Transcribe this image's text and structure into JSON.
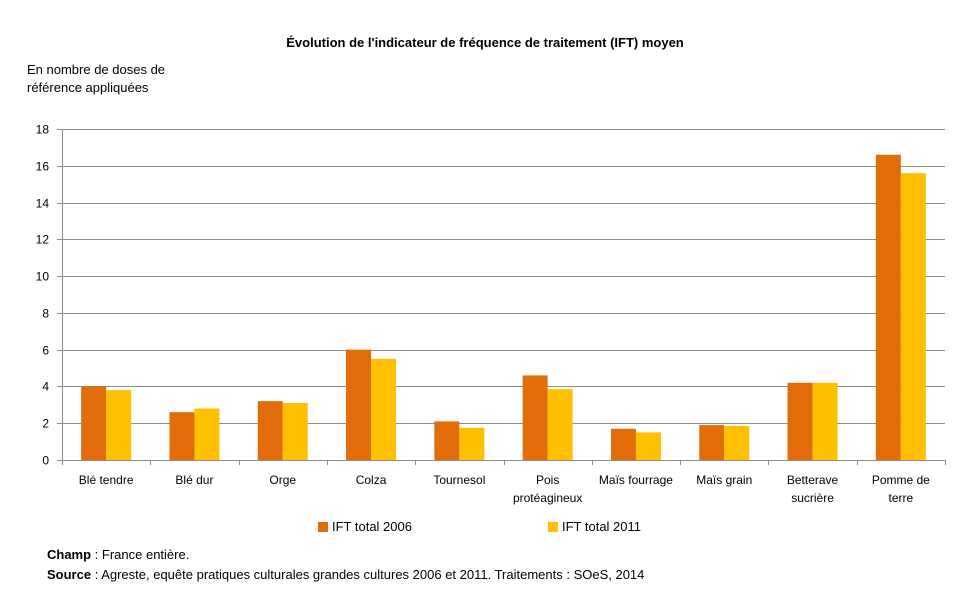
{
  "chart_data": {
    "type": "bar",
    "title": "Évolution de l'indicateur de fréquence de traitement (IFT) moyen",
    "ylabel": "En nombre de doses de référence appliquées",
    "ylabel_lines": [
      "En nombre de doses de",
      "référence appliquées"
    ],
    "xlabel": "",
    "ylim": [
      0,
      18
    ],
    "yticks": [
      "0",
      "2",
      "4",
      "6",
      "8",
      "10",
      "12",
      "14",
      "16",
      "18"
    ],
    "grid": true,
    "legend_position": "bottom",
    "categories": [
      [
        "Blé tendre"
      ],
      [
        "Blé dur"
      ],
      [
        "Orge"
      ],
      [
        "Colza"
      ],
      [
        "Tournesol"
      ],
      [
        "Pois",
        "protéagineux"
      ],
      [
        "Maïs fourrage"
      ],
      [
        "Maïs grain"
      ],
      [
        "Betterave",
        "sucrière"
      ],
      [
        "Pomme de",
        "terre"
      ]
    ],
    "series": [
      {
        "name": "IFT total 2006",
        "color": "#E36C0A",
        "values": [
          4.0,
          2.6,
          3.2,
          6.0,
          2.1,
          4.6,
          1.7,
          1.9,
          4.2,
          16.6
        ]
      },
      {
        "name": "IFT total 2011",
        "color": "#FFC000",
        "values": [
          3.8,
          2.8,
          3.1,
          5.5,
          1.75,
          3.85,
          1.5,
          1.85,
          4.2,
          15.6
        ]
      }
    ]
  },
  "notes": {
    "champ_label": "Champ",
    "champ_text": " : France entière.",
    "source_label": "Source",
    "source_text": " : Agreste, equête pratiques culturales grandes cultures 2006 et 2011. Traitements : SOeS, 2014"
  }
}
